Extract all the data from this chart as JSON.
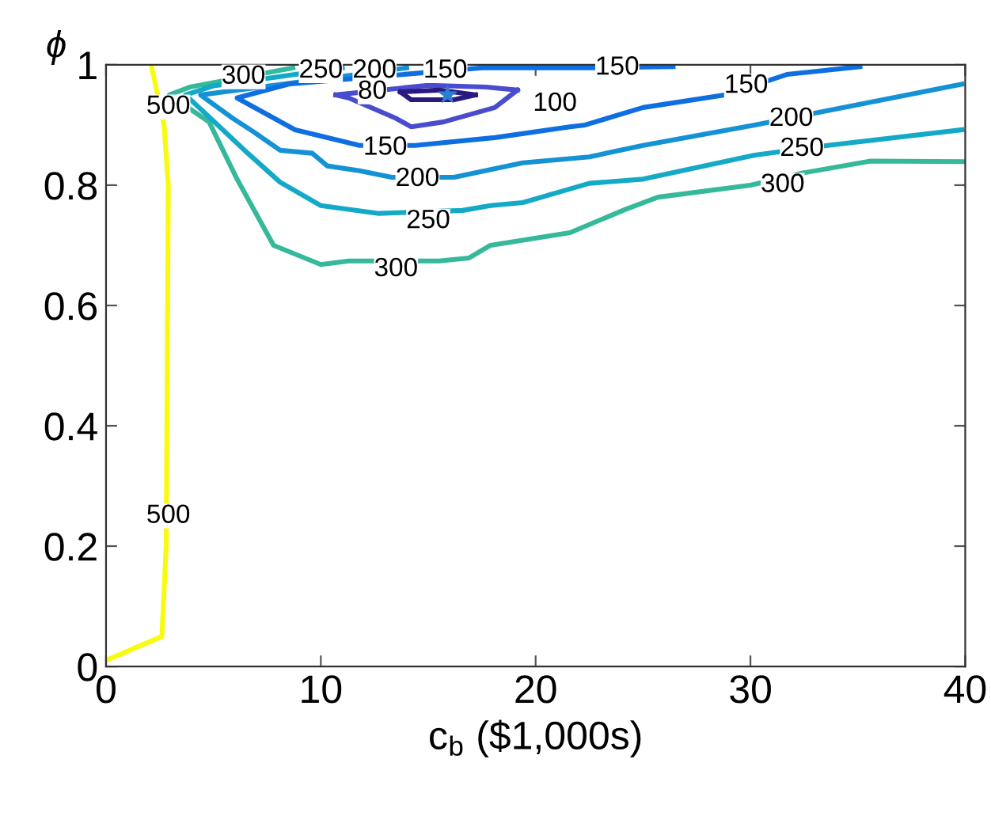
{
  "chart_data": {
    "type": "line",
    "xlabel": "c$_{b}$ ($1,000s)",
    "ylabel": "ϕ",
    "xlim": [
      0,
      40
    ],
    "xticks": [
      0,
      10,
      20,
      30,
      40
    ],
    "ylim": [
      0,
      1
    ],
    "yticks": [
      0,
      0.2,
      0.4,
      0.6,
      0.8,
      1
    ],
    "grid": false,
    "legend": false,
    "marker": "none",
    "line_style": "solid",
    "series": [
      {
        "color": "#f9fb0e",
        "x": [
          0,
          2.6,
          2.8,
          2.9,
          2.7,
          2.1
        ],
        "values": [
          0.01,
          0.05,
          0.2,
          0.8,
          0.9,
          1.0
        ]
      },
      {
        "color": "#35b99a",
        "x": [
          8.7,
          3.9,
          2.95,
          4.8,
          6.1,
          7.8,
          10.0,
          11.3,
          15.5,
          16.9,
          17.9,
          21.6,
          24.2,
          25.7,
          30,
          32.4,
          35.6,
          40
        ],
        "values": [
          0.995,
          0.963,
          0.95,
          0.905,
          0.81,
          0.7,
          0.668,
          0.674,
          0.674,
          0.679,
          0.7,
          0.721,
          0.76,
          0.78,
          0.8,
          0.82,
          0.84,
          0.839
        ]
      },
      {
        "color": "#14a9c6",
        "x": [
          11.0,
          5.0,
          3.7,
          5.2,
          6.6,
          8.1,
          10.0,
          12.7,
          16.6,
          17.9,
          19.4,
          22.5,
          25.0,
          30.2,
          33.6,
          39.85
        ],
        "values": [
          0.995,
          0.965,
          0.95,
          0.9,
          0.853,
          0.805,
          0.766,
          0.753,
          0.758,
          0.766,
          0.771,
          0.803,
          0.81,
          0.85,
          0.866,
          0.892
        ]
      },
      {
        "color": "#1592d6",
        "x": [
          14.0,
          4.4,
          5.9,
          6.85,
          8.1,
          9.6,
          10.3,
          11.8,
          13.3,
          16.2,
          19.4,
          22.5,
          25.0,
          30.2,
          33.6,
          39.85
        ],
        "values": [
          0.995,
          0.95,
          0.911,
          0.889,
          0.858,
          0.853,
          0.832,
          0.824,
          0.813,
          0.813,
          0.837,
          0.847,
          0.866,
          0.9,
          0.924,
          0.968
        ]
      },
      {
        "color": "#0f6fe0",
        "x": [
          26.4,
          22.5,
          17.5,
          8.5,
          6.1,
          8.8,
          11.8,
          14.4,
          18.1,
          21.6,
          22.3,
          25.0,
          28.8,
          31.7,
          35.1
        ],
        "values": [
          0.997,
          0.995,
          0.995,
          0.968,
          0.945,
          0.892,
          0.866,
          0.866,
          0.879,
          0.897,
          0.9,
          0.929,
          0.95,
          0.984,
          0.997
        ]
      },
      {
        "color": "#4a4ccf",
        "x": [
          10.7,
          11.3,
          13.5,
          14.2,
          15.7,
          18.1,
          19.15
        ],
        "values": [
          0.95,
          0.945,
          0.911,
          0.897,
          0.905,
          0.929,
          0.958
        ]
      },
      {
        "color": "#4a4ccf",
        "x": [
          10.7,
          15.0,
          17.7,
          19.15
        ],
        "values": [
          0.95,
          0.966,
          0.963,
          0.958
        ]
      },
      {
        "color": "#2a1a80",
        "x": [
          13.7,
          14.2,
          16.2,
          17.2
        ],
        "values": [
          0.955,
          0.942,
          0.942,
          0.95
        ]
      },
      {
        "color": "#2a1a80",
        "x": [
          13.7,
          15.5,
          17.2
        ],
        "values": [
          0.955,
          0.958,
          0.95
        ]
      },
      {
        "type": "scatter",
        "marker": "star",
        "color": "#2a7fd4",
        "x": [
          15.9
        ],
        "values": [
          0.95
        ]
      }
    ],
    "annotations": [
      {
        "text": "500",
        "x": 2.9,
        "y": 0.93
      },
      {
        "text": "500",
        "x": 2.9,
        "y": 0.25
      },
      {
        "text": "300",
        "x": 6.4,
        "y": 0.98
      },
      {
        "text": "300",
        "x": 13.5,
        "y": 0.66
      },
      {
        "text": "300",
        "x": 31.5,
        "y": 0.8
      },
      {
        "text": "250",
        "x": 10.0,
        "y": 0.99
      },
      {
        "text": "250",
        "x": 15.0,
        "y": 0.74
      },
      {
        "text": "250",
        "x": 32.4,
        "y": 0.86
      },
      {
        "text": "200",
        "x": 12.5,
        "y": 0.99
      },
      {
        "text": "200",
        "x": 14.5,
        "y": 0.81
      },
      {
        "text": "200",
        "x": 31.9,
        "y": 0.91
      },
      {
        "text": "150",
        "x": 15.8,
        "y": 0.99
      },
      {
        "text": "150",
        "x": 23.8,
        "y": 0.995
      },
      {
        "text": "150",
        "x": 13.0,
        "y": 0.862
      },
      {
        "text": "150",
        "x": 29.8,
        "y": 0.965
      },
      {
        "text": "100",
        "x": 20.9,
        "y": 0.935
      },
      {
        "text": "80",
        "x": 12.4,
        "y": 0.955
      }
    ]
  }
}
